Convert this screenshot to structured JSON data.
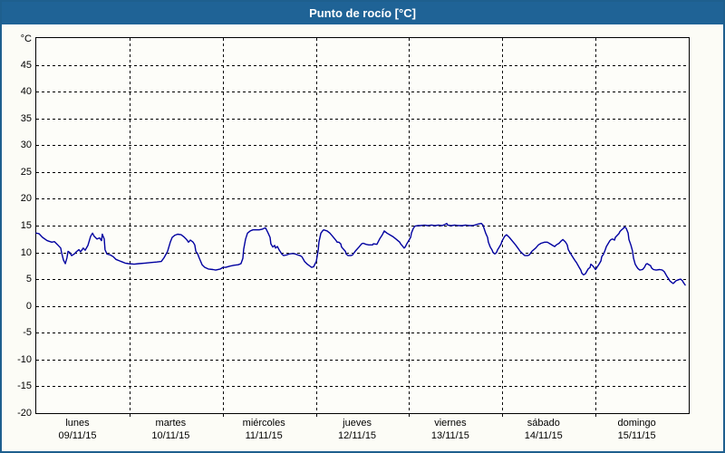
{
  "window": {
    "title": "Punto de rocío [°C]"
  },
  "colors": {
    "titlebar_bg": "#1F6396",
    "frame_border": "#1E5F8E",
    "content_bg": "#FCFCF6",
    "plot_bg": "#FDFDF9",
    "grid": "#000000",
    "line": "#0000A0",
    "title_text": "#FFFFFF"
  },
  "chart_data": {
    "type": "line",
    "title": "Punto de rocío [°C]",
    "y_unit_label": "°C",
    "ylim": [
      -20,
      50
    ],
    "y_ticks": [
      45,
      40,
      35,
      30,
      25,
      20,
      15,
      10,
      5,
      0,
      -5,
      -10,
      -15,
      -20
    ],
    "grid": "dashed",
    "x_hours_range": [
      0,
      168
    ],
    "x_days": [
      {
        "name": "lunes",
        "date": "09/11/15"
      },
      {
        "name": "martes",
        "date": "10/11/15"
      },
      {
        "name": "miércoles",
        "date": "11/11/15"
      },
      {
        "name": "jueves",
        "date": "12/11/15"
      },
      {
        "name": "viernes",
        "date": "13/11/15"
      },
      {
        "name": "sábado",
        "date": "14/11/15"
      },
      {
        "name": "domingo",
        "date": "15/11/15"
      }
    ],
    "series": [
      {
        "name": "Punto de rocío",
        "color": "#0000A0",
        "points": [
          [
            0,
            13.6
          ],
          [
            0.7,
            13.5
          ],
          [
            1.6,
            12.8
          ],
          [
            2.8,
            12.2
          ],
          [
            4,
            11.9
          ],
          [
            4.7,
            12
          ],
          [
            5.4,
            11.5
          ],
          [
            6.3,
            10.8
          ],
          [
            6.5,
            10
          ],
          [
            7,
            8.6
          ],
          [
            7.5,
            7.9
          ],
          [
            7.9,
            9
          ],
          [
            8.2,
            10.2
          ],
          [
            8.6,
            10
          ],
          [
            9.1,
            9.4
          ],
          [
            9.8,
            9.7
          ],
          [
            10.3,
            10.1
          ],
          [
            11,
            10.5
          ],
          [
            11.4,
            10.1
          ],
          [
            12.1,
            10.8
          ],
          [
            12.6,
            10.4
          ],
          [
            13.3,
            11.3
          ],
          [
            14,
            13
          ],
          [
            14.5,
            13.6
          ],
          [
            14.9,
            13
          ],
          [
            15.6,
            12.5
          ],
          [
            16.3,
            12.7
          ],
          [
            16.8,
            12.2
          ],
          [
            17,
            13.4
          ],
          [
            17.5,
            12.5
          ],
          [
            17.7,
            10.5
          ],
          [
            18.2,
            9.7
          ],
          [
            19.1,
            9.5
          ],
          [
            19.8,
            9.2
          ],
          [
            20.5,
            8.7
          ],
          [
            21.5,
            8.4
          ],
          [
            22.2,
            8.2
          ],
          [
            22.9,
            8
          ],
          [
            23.8,
            7.9
          ],
          [
            25.2,
            7.8
          ],
          [
            26.4,
            7.9
          ],
          [
            28,
            8
          ],
          [
            29.4,
            8.1
          ],
          [
            31,
            8.2
          ],
          [
            32.2,
            8.3
          ],
          [
            32.9,
            9
          ],
          [
            33.8,
            10.2
          ],
          [
            34.5,
            11.9
          ],
          [
            35,
            12.8
          ],
          [
            35.7,
            13.2
          ],
          [
            36.4,
            13.4
          ],
          [
            37.3,
            13.3
          ],
          [
            38,
            12.9
          ],
          [
            38.7,
            12.4
          ],
          [
            39.2,
            11.9
          ],
          [
            39.7,
            12.3
          ],
          [
            40.4,
            11.9
          ],
          [
            40.8,
            11.4
          ],
          [
            41.1,
            10.2
          ],
          [
            41.5,
            9.8
          ],
          [
            42,
            8.9
          ],
          [
            42.7,
            7.7
          ],
          [
            43.4,
            7.2
          ],
          [
            44.3,
            6.9
          ],
          [
            45.5,
            6.8
          ],
          [
            46.2,
            6.7
          ],
          [
            47.4,
            6.9
          ],
          [
            48.1,
            7.2
          ],
          [
            48.8,
            7.2
          ],
          [
            49.7,
            7.4
          ],
          [
            50.9,
            7.6
          ],
          [
            52,
            7.7
          ],
          [
            52.7,
            7.9
          ],
          [
            53.2,
            8.9
          ],
          [
            53.4,
            10.6
          ],
          [
            53.9,
            12.5
          ],
          [
            54.4,
            13.6
          ],
          [
            55.1,
            14
          ],
          [
            55.8,
            14.2
          ],
          [
            56.7,
            14.2
          ],
          [
            57.4,
            14.2
          ],
          [
            58.1,
            14.3
          ],
          [
            59,
            14.6
          ],
          [
            59.3,
            14.2
          ],
          [
            59.7,
            13.6
          ],
          [
            60.2,
            12.8
          ],
          [
            60.4,
            11.6
          ],
          [
            60.9,
            11
          ],
          [
            61.4,
            11.3
          ],
          [
            61.6,
            10.8
          ],
          [
            62.1,
            11.1
          ],
          [
            62.5,
            10.5
          ],
          [
            63.2,
            9.7
          ],
          [
            63.7,
            9.4
          ],
          [
            64.4,
            9.5
          ],
          [
            65.1,
            9.7
          ],
          [
            66,
            9.8
          ],
          [
            66.7,
            9.7
          ],
          [
            67.4,
            9.5
          ],
          [
            67.9,
            9.4
          ],
          [
            68.4,
            9.2
          ],
          [
            69.1,
            8.3
          ],
          [
            69.8,
            7.8
          ],
          [
            70.7,
            7.3
          ],
          [
            70.9,
            7.2
          ],
          [
            71.4,
            7.3
          ],
          [
            72.1,
            8.3
          ],
          [
            72.6,
            10.4
          ],
          [
            72.8,
            12
          ],
          [
            73.3,
            13.6
          ],
          [
            73.7,
            14
          ],
          [
            74,
            14.2
          ],
          [
            74.9,
            14
          ],
          [
            75.6,
            13.6
          ],
          [
            76.3,
            13
          ],
          [
            77.2,
            12.2
          ],
          [
            77.5,
            11.9
          ],
          [
            77.9,
            11.9
          ],
          [
            78.4,
            11.6
          ],
          [
            78.6,
            11
          ],
          [
            79.6,
            10.2
          ],
          [
            79.8,
            9.7
          ],
          [
            80.3,
            9.4
          ],
          [
            81,
            9.4
          ],
          [
            81.4,
            9.5
          ],
          [
            82.1,
            10.2
          ],
          [
            83.1,
            11
          ],
          [
            83.8,
            11.6
          ],
          [
            84.2,
            11.7
          ],
          [
            84.9,
            11.5
          ],
          [
            85.6,
            11.4
          ],
          [
            86.6,
            11.4
          ],
          [
            86.8,
            11.6
          ],
          [
            87.7,
            11.5
          ],
          [
            88,
            11.9
          ],
          [
            88.4,
            12.5
          ],
          [
            89.1,
            13.3
          ],
          [
            89.6,
            14
          ],
          [
            90.3,
            13.6
          ],
          [
            91.2,
            13.2
          ],
          [
            91.9,
            12.9
          ],
          [
            92.6,
            12.5
          ],
          [
            93.6,
            11.9
          ],
          [
            93.8,
            11.6
          ],
          [
            94.3,
            11.2
          ],
          [
            94.7,
            10.8
          ],
          [
            95,
            11
          ],
          [
            95.4,
            11.6
          ],
          [
            95.9,
            12.2
          ],
          [
            96.4,
            12.8
          ],
          [
            96.6,
            13.6
          ],
          [
            97.1,
            14.5
          ],
          [
            97.5,
            14.9
          ],
          [
            98.2,
            15
          ],
          [
            98.9,
            15
          ],
          [
            99.9,
            15.1
          ],
          [
            100.8,
            15
          ],
          [
            101.7,
            15.1
          ],
          [
            102.7,
            15
          ],
          [
            103.6,
            15.1
          ],
          [
            104.5,
            15
          ],
          [
            105.2,
            15.2
          ],
          [
            105.7,
            15.4
          ],
          [
            105.9,
            15.1
          ],
          [
            106.9,
            15
          ],
          [
            107.8,
            15.1
          ],
          [
            108.7,
            15
          ],
          [
            109.7,
            15
          ],
          [
            110.6,
            15.1
          ],
          [
            111.5,
            15
          ],
          [
            112.2,
            15
          ],
          [
            112.9,
            15.1
          ],
          [
            113.9,
            15.3
          ],
          [
            114.6,
            15.4
          ],
          [
            115,
            15.1
          ],
          [
            115.3,
            14.5
          ],
          [
            115.7,
            13.6
          ],
          [
            116.2,
            12.8
          ],
          [
            116.4,
            11.9
          ],
          [
            116.9,
            11
          ],
          [
            117.4,
            10.4
          ],
          [
            117.6,
            10
          ],
          [
            118.1,
            9.7
          ],
          [
            118.5,
            10
          ],
          [
            118.8,
            10.5
          ],
          [
            119.2,
            11
          ],
          [
            119.7,
            11.6
          ],
          [
            119.9,
            12.1
          ],
          [
            120.6,
            13
          ],
          [
            121.1,
            13.3
          ],
          [
            121.8,
            12.8
          ],
          [
            122.7,
            12
          ],
          [
            123.4,
            11.4
          ],
          [
            124.1,
            10.7
          ],
          [
            124.6,
            10.2
          ],
          [
            125.3,
            9.7
          ],
          [
            125.8,
            9.4
          ],
          [
            126.5,
            9.4
          ],
          [
            126.9,
            9.5
          ],
          [
            127.6,
            10.2
          ],
          [
            128.6,
            10.8
          ],
          [
            129.3,
            11.4
          ],
          [
            130,
            11.7
          ],
          [
            130.9,
            11.9
          ],
          [
            131.6,
            11.9
          ],
          [
            132.3,
            11.6
          ],
          [
            133.2,
            11.2
          ],
          [
            133.5,
            11.1
          ],
          [
            133.9,
            11.4
          ],
          [
            134.6,
            11.7
          ],
          [
            135.1,
            12.1
          ],
          [
            135.6,
            12.4
          ],
          [
            136.3,
            11.9
          ],
          [
            136.7,
            11.4
          ],
          [
            137,
            10.5
          ],
          [
            137.4,
            10
          ],
          [
            137.9,
            9.4
          ],
          [
            138.6,
            8.6
          ],
          [
            139.1,
            8.1
          ],
          [
            139.8,
            7.2
          ],
          [
            140.2,
            6.7
          ],
          [
            140.5,
            6.1
          ],
          [
            140.9,
            5.8
          ],
          [
            141.4,
            6
          ],
          [
            141.6,
            6.3
          ],
          [
            142.1,
            6.9
          ],
          [
            142.6,
            7.2
          ],
          [
            142.8,
            7.8
          ],
          [
            143.3,
            7.5
          ],
          [
            143.7,
            7.1
          ],
          [
            144,
            6.8
          ],
          [
            144.2,
            7
          ],
          [
            144.9,
            7.8
          ],
          [
            145.4,
            8.4
          ],
          [
            145.6,
            9.2
          ],
          [
            146.1,
            9.7
          ],
          [
            146.5,
            10.5
          ],
          [
            146.8,
            11.1
          ],
          [
            147.2,
            11.6
          ],
          [
            147.7,
            12.2
          ],
          [
            148,
            12.4
          ],
          [
            148.4,
            12.5
          ],
          [
            148.9,
            12.3
          ],
          [
            149.1,
            12.8
          ],
          [
            150,
            13.5
          ],
          [
            150.3,
            13.9
          ],
          [
            150.7,
            14.2
          ],
          [
            151.2,
            14.5
          ],
          [
            151.4,
            14.8
          ],
          [
            151.9,
            14.5
          ],
          [
            152.4,
            13.6
          ],
          [
            152.6,
            12.4
          ],
          [
            153.1,
            11.4
          ],
          [
            153.5,
            10.3
          ],
          [
            153.8,
            8.9
          ],
          [
            154.2,
            7.8
          ],
          [
            154.7,
            7.2
          ],
          [
            154.9,
            7
          ],
          [
            155.4,
            6.7
          ],
          [
            156.1,
            6.8
          ],
          [
            156.6,
            7.2
          ],
          [
            157,
            7.8
          ],
          [
            157.3,
            7.9
          ],
          [
            158.2,
            7.5
          ],
          [
            158.4,
            7.1
          ],
          [
            158.9,
            6.8
          ],
          [
            159.6,
            6.7
          ],
          [
            160.5,
            6.8
          ],
          [
            161.2,
            6.7
          ],
          [
            161.7,
            6.4
          ],
          [
            162.4,
            5.5
          ],
          [
            162.9,
            5
          ],
          [
            163.1,
            4.7
          ],
          [
            163.6,
            4.4
          ],
          [
            164,
            4.2
          ],
          [
            164.3,
            4.4
          ],
          [
            164.7,
            4.7
          ],
          [
            165.4,
            4.9
          ],
          [
            165.9,
            5
          ],
          [
            166.4,
            4.7
          ],
          [
            166.6,
            4.4
          ],
          [
            167.1,
            3.9
          ]
        ]
      }
    ]
  }
}
